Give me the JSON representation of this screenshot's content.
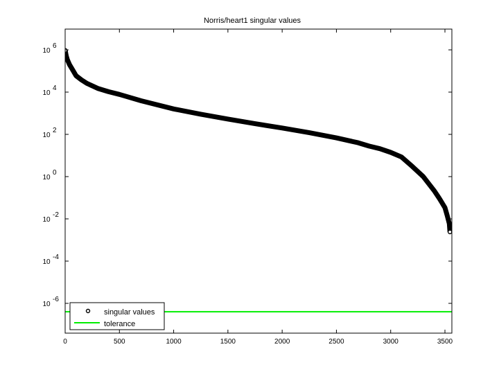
{
  "chart_data": {
    "type": "scatter",
    "title": "Norris/heart1 singular values",
    "xlabel": "",
    "ylabel": "",
    "yscale": "log",
    "xlim": [
      0,
      3570
    ],
    "ylim_log10": [
      -7.4,
      7.0
    ],
    "grid": false,
    "legend_position": "lower-left",
    "x_ticks": [
      0,
      500,
      1000,
      1500,
      2000,
      2500,
      3000,
      3500
    ],
    "x_tick_labels": [
      "0",
      "500",
      "1000",
      "1500",
      "2000",
      "2500",
      "3000",
      "3500"
    ],
    "y_ticks_log10": [
      6,
      4,
      2,
      0,
      -2,
      -4,
      -6
    ],
    "y_tick_labels": [
      {
        "base": "10",
        "exp": "6"
      },
      {
        "base": "10",
        "exp": "4"
      },
      {
        "base": "10",
        "exp": "2"
      },
      {
        "base": "10",
        "exp": "0"
      },
      {
        "base": "10",
        "exp": "-2"
      },
      {
        "base": "10",
        "exp": "-4"
      },
      {
        "base": "10",
        "exp": "-6"
      }
    ],
    "series": [
      {
        "name": "singular values",
        "marker": "circle-open",
        "color": "#000000",
        "x": [
          1,
          5,
          10,
          20,
          40,
          70,
          100,
          150,
          200,
          300,
          400,
          500,
          700,
          1000,
          1250,
          1500,
          1750,
          2000,
          2250,
          2500,
          2700,
          2800,
          2900,
          3000,
          3100,
          3200,
          3300,
          3400,
          3450,
          3500,
          3520,
          3540,
          3546
        ],
        "values": [
          950000,
          700000,
          520000,
          350000,
          200000,
          110000,
          60000,
          38000,
          26000,
          15000,
          10500,
          7800,
          3900,
          1600,
          900,
          530,
          320,
          200,
          120,
          68,
          40,
          28,
          21,
          14,
          8.5,
          3.0,
          1.0,
          0.22,
          0.09,
          0.034,
          0.015,
          0.006,
          0.0024
        ]
      },
      {
        "name": "tolerance",
        "marker": "line",
        "color": "#00ee00",
        "constant_value": 4e-07
      }
    ]
  },
  "legend": {
    "items": [
      {
        "label": "singular values",
        "symbol": "circle-open"
      },
      {
        "label": "tolerance",
        "symbol": "green-line"
      }
    ]
  },
  "colors": {
    "axes": "#000000",
    "data": "#000000",
    "tolerance": "#00ee00",
    "background": "#ffffff"
  }
}
